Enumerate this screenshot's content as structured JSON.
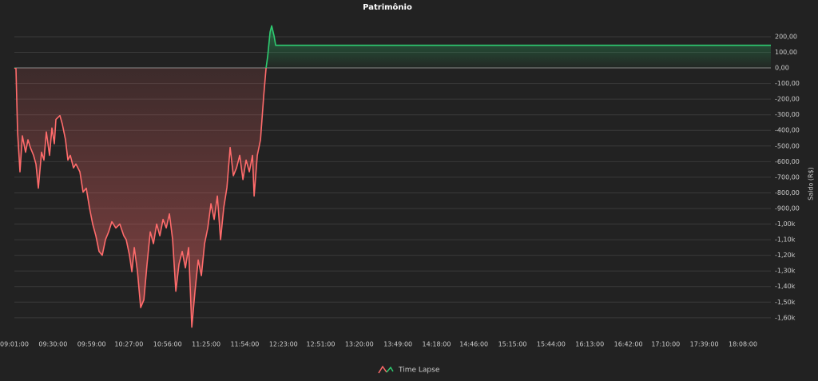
{
  "chart_data": {
    "type": "line",
    "title": "Patrimônio",
    "y_label": "Saldo (R$)",
    "x": [
      "09:01:00",
      "09:02:12",
      "09:03:24",
      "09:05:12",
      "09:07:00",
      "09:09:24",
      "09:11:12",
      "09:13:00",
      "09:15:24",
      "09:17:12",
      "09:19:00",
      "09:21:24",
      "09:23:12",
      "09:25:00",
      "09:27:24",
      "09:29:12",
      "09:31:00",
      "09:32:12",
      "09:35:12",
      "09:37:00",
      "09:39:24",
      "09:41:12",
      "09:43:00",
      "09:45:24",
      "09:47:12",
      "09:50:12",
      "09:52:36",
      "09:55:00",
      "09:57:24",
      "09:59:48",
      "10:02:12",
      "10:04:36",
      "10:07:00",
      "10:09:24",
      "10:11:48",
      "10:14:12",
      "10:17:12",
      "10:20:12",
      "10:23:12",
      "10:25:00",
      "10:27:24",
      "10:29:12",
      "10:31:00",
      "10:33:24",
      "10:35:48",
      "10:38:12",
      "10:40:36",
      "10:43:00",
      "10:45:24",
      "10:47:48",
      "10:50:12",
      "10:52:36",
      "10:55:00",
      "10:57:24",
      "10:59:48",
      "11:02:12",
      "11:04:36",
      "11:07:00",
      "11:09:24",
      "11:11:48",
      "11:14:12",
      "11:16:36",
      "11:19:00",
      "11:21:24",
      "11:23:48",
      "11:26:12",
      "11:28:36",
      "11:31:00",
      "11:33:24",
      "11:35:48",
      "11:38:12",
      "11:40:36",
      "11:43:00",
      "11:45:24",
      "11:47:48",
      "11:50:12",
      "11:52:36",
      "11:55:00",
      "11:57:24",
      "11:59:48",
      "12:01:00",
      "12:03:24",
      "12:05:48",
      "12:08:12",
      "12:10:00",
      "12:11:12",
      "12:13:00",
      "12:14:12",
      "12:16:00",
      "12:17:12",
      "12:20:12",
      "18:29:00"
    ],
    "series": [
      {
        "name": "Time Lapse",
        "color": "#ff6b6b",
        "positive_color": "#2ecc71",
        "values": [
          0,
          -5,
          -410,
          -665,
          -435,
          -540,
          -460,
          -510,
          -560,
          -615,
          -770,
          -540,
          -590,
          -410,
          -560,
          -385,
          -485,
          -330,
          -305,
          -360,
          -460,
          -590,
          -560,
          -640,
          -615,
          -665,
          -795,
          -770,
          -895,
          -1000,
          -1075,
          -1175,
          -1200,
          -1100,
          -1050,
          -985,
          -1025,
          -1000,
          -1075,
          -1100,
          -1200,
          -1305,
          -1150,
          -1305,
          -1535,
          -1485,
          -1255,
          -1050,
          -1125,
          -1000,
          -1075,
          -970,
          -1025,
          -935,
          -1100,
          -1430,
          -1255,
          -1175,
          -1280,
          -1150,
          -1660,
          -1430,
          -1230,
          -1330,
          -1125,
          -1025,
          -870,
          -970,
          -820,
          -1100,
          -895,
          -765,
          -510,
          -690,
          -640,
          -560,
          -715,
          -590,
          -665,
          -560,
          -820,
          -560,
          -460,
          -180,
          0,
          75,
          230,
          270,
          205,
          145,
          145,
          145
        ]
      }
    ],
    "xlim": [
      "09:01:00",
      "18:29:00"
    ],
    "xticks": [
      "09:01:00",
      "09:30:00",
      "09:59:00",
      "10:27:00",
      "10:56:00",
      "11:25:00",
      "11:54:00",
      "12:23:00",
      "12:51:00",
      "13:20:00",
      "13:49:00",
      "14:18:00",
      "14:46:00",
      "15:15:00",
      "15:44:00",
      "16:13:00",
      "16:42:00",
      "17:10:00",
      "17:39:00",
      "18:08:00"
    ],
    "ylim": [
      -1700,
      280
    ],
    "yticks": [
      {
        "value": 200,
        "label": "200,00"
      },
      {
        "value": 100,
        "label": "100,00"
      },
      {
        "value": 0,
        "label": "0,00"
      },
      {
        "value": -100,
        "label": "-100,00"
      },
      {
        "value": -200,
        "label": "-200,00"
      },
      {
        "value": -300,
        "label": "-300,00"
      },
      {
        "value": -400,
        "label": "-400,00"
      },
      {
        "value": -500,
        "label": "-500,00"
      },
      {
        "value": -600,
        "label": "-600,00"
      },
      {
        "value": -700,
        "label": "-700,00"
      },
      {
        "value": -800,
        "label": "-800,00"
      },
      {
        "value": -900,
        "label": "-900,00"
      },
      {
        "value": -1000,
        "label": "-1,00k"
      },
      {
        "value": -1100,
        "label": "-1,10k"
      },
      {
        "value": -1200,
        "label": "-1,20k"
      },
      {
        "value": -1300,
        "label": "-1,30k"
      },
      {
        "value": -1400,
        "label": "-1,40k"
      },
      {
        "value": -1500,
        "label": "-1,50k"
      },
      {
        "value": -1600,
        "label": "-1,60k"
      }
    ],
    "grid": true
  }
}
